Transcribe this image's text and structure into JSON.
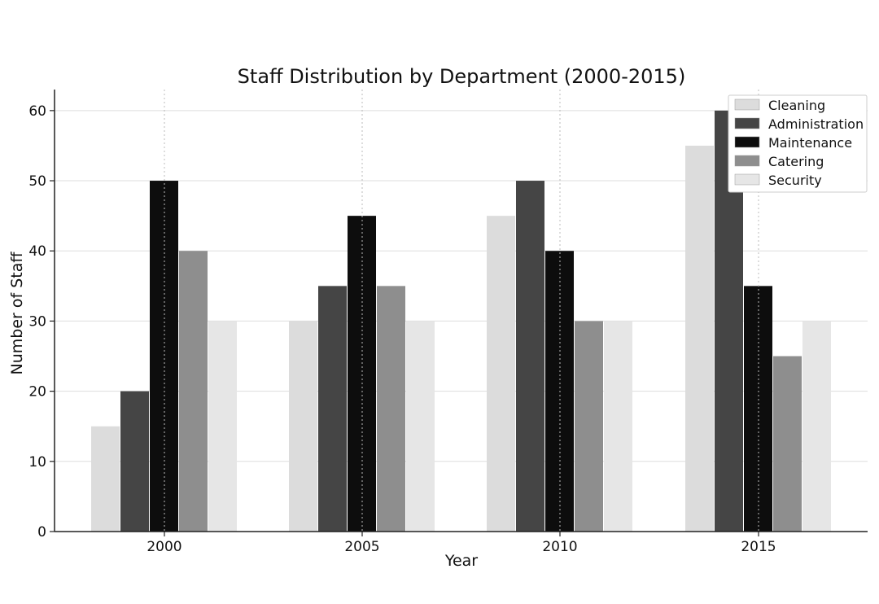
{
  "chart_data": {
    "type": "bar",
    "title": "Staff Distribution by Department (2000-2015)",
    "xlabel": "Year",
    "ylabel": "Number of Staff",
    "categories": [
      "2000",
      "2005",
      "2010",
      "2015"
    ],
    "ylim": [
      0,
      63
    ],
    "yticks": [
      0,
      10,
      20,
      30,
      40,
      50,
      60
    ],
    "grid": true,
    "legend_position": "top-right",
    "series": [
      {
        "name": "Cleaning",
        "values": [
          15,
          30,
          45,
          55
        ],
        "color": "#dcdcdc"
      },
      {
        "name": "Administration",
        "values": [
          20,
          35,
          50,
          60
        ],
        "color": "#454545"
      },
      {
        "name": "Maintenance",
        "values": [
          50,
          45,
          40,
          35
        ],
        "color": "#0d0d0d"
      },
      {
        "name": "Catering",
        "values": [
          40,
          35,
          30,
          25
        ],
        "color": "#8e8e8e"
      },
      {
        "name": "Security",
        "values": [
          30,
          30,
          30,
          30
        ],
        "color": "#e6e6e6"
      }
    ]
  }
}
